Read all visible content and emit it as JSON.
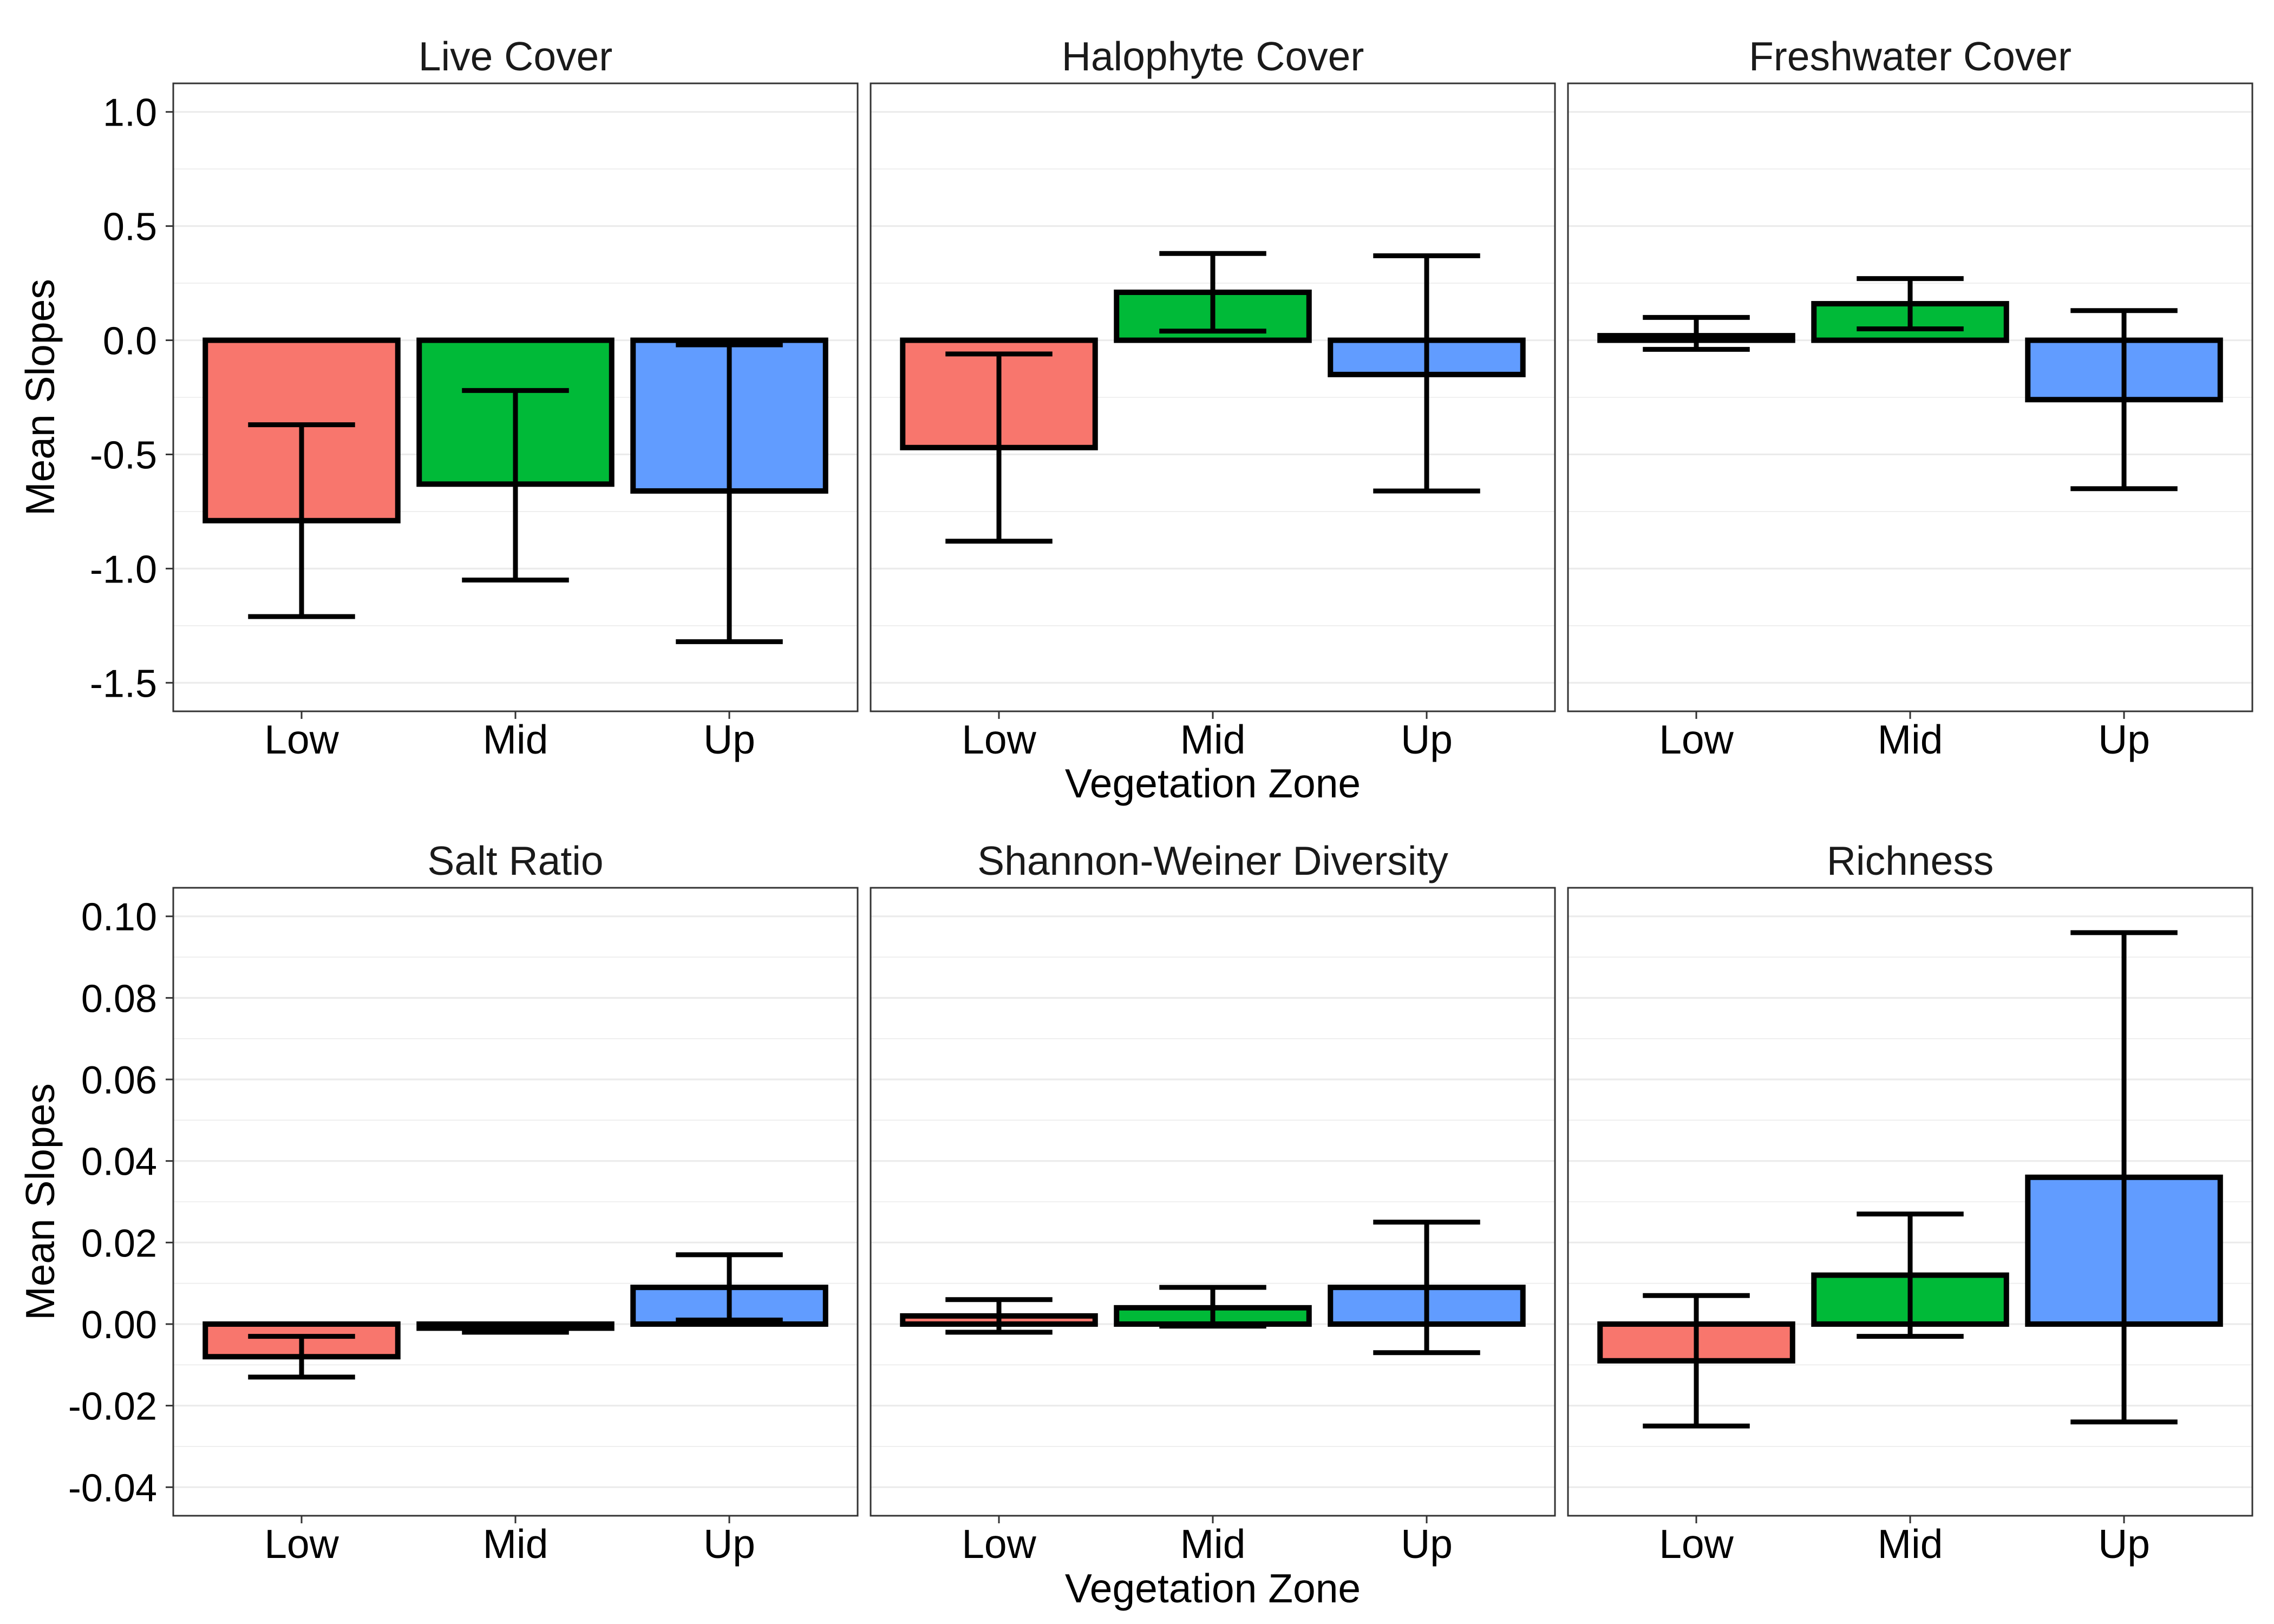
{
  "chart_data": [
    {
      "type": "bar",
      "xlabel": "Vegetation Zone",
      "ylabel": "Mean Slopes",
      "categories": [
        "Low",
        "Mid",
        "Up"
      ],
      "colors": [
        "#F8766D",
        "#00BA38",
        "#619CFF"
      ],
      "ylim": [
        -1.625,
        1.125
      ],
      "ytick_labels": [
        "1.0",
        "0.5",
        "0.0",
        "-0.5",
        "-1.0",
        "-1.5"
      ],
      "grid": {
        "x": false,
        "y": true
      },
      "panels": [
        {
          "title": "Live Cover",
          "values": [
            -0.79,
            -0.63,
            -0.66
          ],
          "error_lower": [
            -1.21,
            -1.05,
            -1.32
          ],
          "error_upper": [
            -0.37,
            -0.22,
            -0.02
          ]
        },
        {
          "title": "Halophyte Cover",
          "values": [
            -0.47,
            0.21,
            -0.15
          ],
          "error_lower": [
            -0.88,
            0.04,
            -0.66
          ],
          "error_upper": [
            -0.06,
            0.38,
            0.37
          ]
        },
        {
          "title": "Freshwater Cover",
          "values": [
            0.02,
            0.16,
            -0.26
          ],
          "error_lower": [
            -0.04,
            0.05,
            -0.65
          ],
          "error_upper": [
            0.1,
            0.27,
            0.13
          ]
        }
      ]
    },
    {
      "type": "bar",
      "xlabel": "Vegetation Zone",
      "ylabel": "Mean Slopes",
      "categories": [
        "Low",
        "Mid",
        "Up"
      ],
      "colors": [
        "#F8766D",
        "#00BA38",
        "#619CFF"
      ],
      "ylim": [
        -0.047,
        0.107
      ],
      "ytick_labels": [
        "0.10",
        "0.08",
        "0.06",
        "0.04",
        "0.02",
        "0.00",
        "-0.02",
        "-0.04"
      ],
      "grid": {
        "x": false,
        "y": true
      },
      "panels": [
        {
          "title": "Salt Ratio",
          "values": [
            -0.008,
            -0.001,
            0.009
          ],
          "error_lower": [
            -0.013,
            -0.002,
            0.001
          ],
          "error_upper": [
            -0.003,
            0.0,
            0.017
          ]
        },
        {
          "title": "Shannon-Weiner Diversity",
          "values": [
            0.002,
            0.004,
            0.009
          ],
          "error_lower": [
            -0.002,
            -0.0005,
            -0.007
          ],
          "error_upper": [
            0.006,
            0.009,
            0.025
          ]
        },
        {
          "title": "Richness",
          "values": [
            -0.009,
            0.012,
            0.036
          ],
          "error_lower": [
            -0.025,
            -0.003,
            -0.024
          ],
          "error_upper": [
            0.007,
            0.027,
            0.096
          ]
        }
      ]
    }
  ]
}
